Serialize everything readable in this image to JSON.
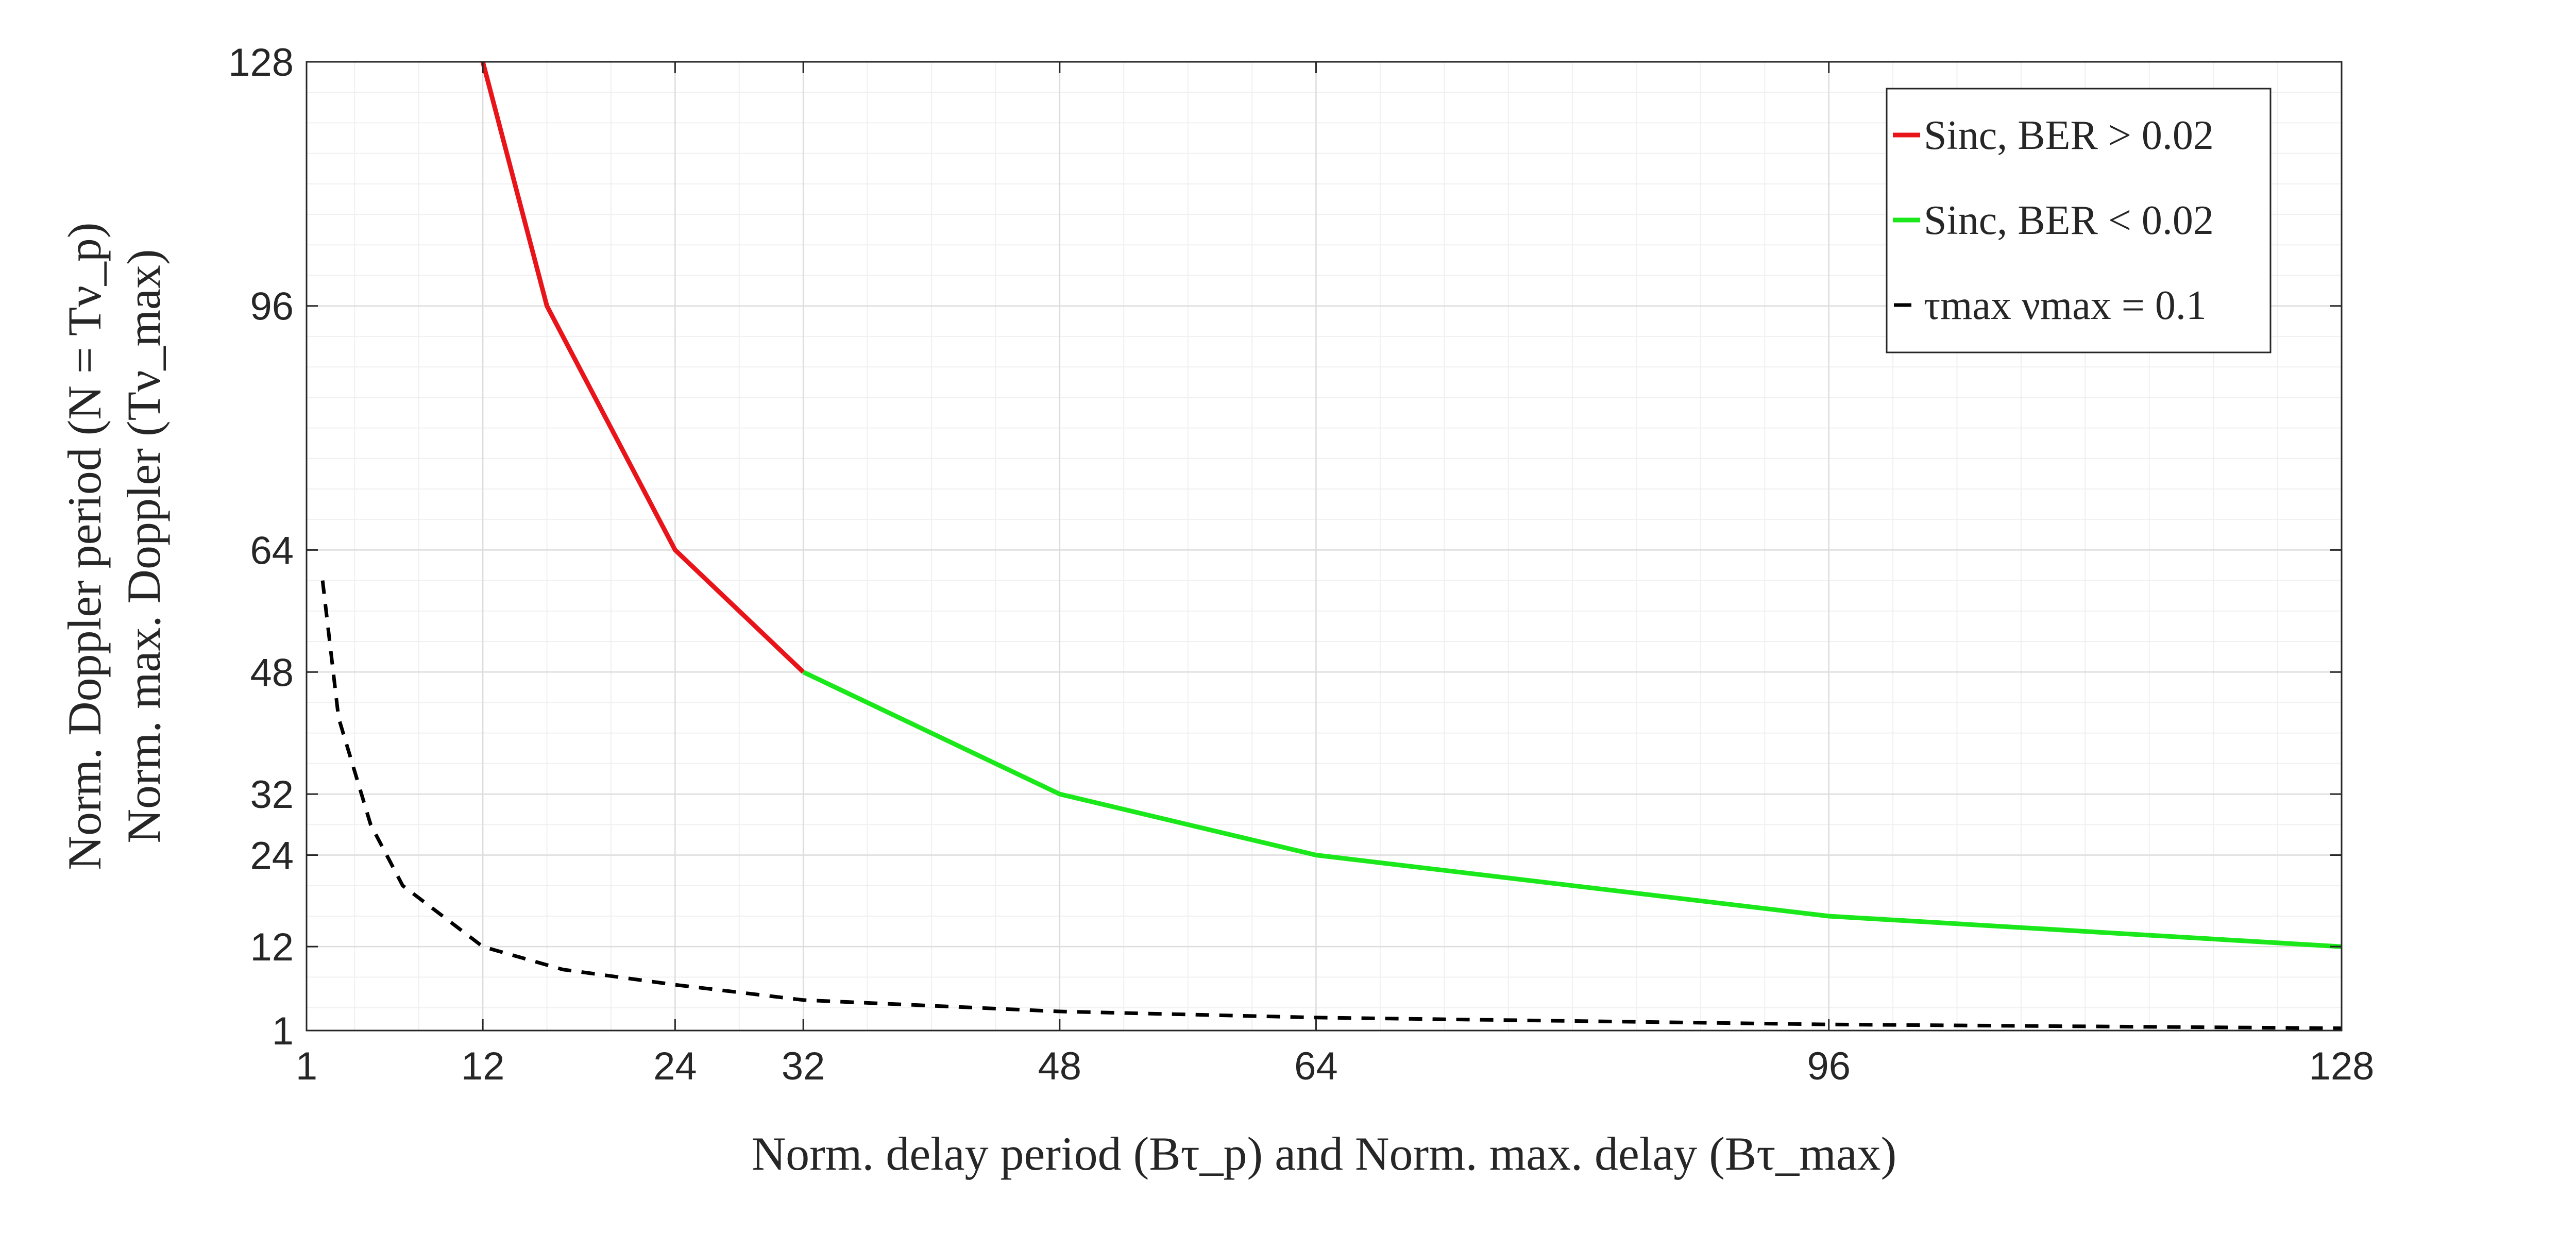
{
  "chart_data": {
    "type": "line",
    "xlabel": "Norm. delay period (Bτ_p) and Norm. max. delay (Bτ_max)",
    "ylabel_lines": [
      "Norm. Doppler period (N = Tν_p)",
      "Norm. max. Doppler (Tν_max)"
    ],
    "xlim": [
      1,
      128
    ],
    "ylim": [
      1,
      128
    ],
    "xticks": [
      1,
      12,
      24,
      32,
      48,
      64,
      96,
      128
    ],
    "yticks": [
      1,
      12,
      24,
      32,
      48,
      64,
      96,
      128
    ],
    "grid": true,
    "minor_grid": true,
    "legend_position": "top-right",
    "series": [
      {
        "name": "Sinc, BER > 0.02",
        "legend_label": "Sinc, BER > 0.02",
        "color": "#e8141a",
        "style": "solid",
        "x": [
          12,
          16,
          24,
          32
        ],
        "y": [
          128,
          96,
          64,
          48
        ]
      },
      {
        "name": "Sinc, BER < 0.02",
        "legend_label": "Sinc, BER < 0.02",
        "color": "#1ae81a",
        "style": "solid",
        "x": [
          32,
          48,
          64,
          96,
          128
        ],
        "y": [
          48,
          32,
          24,
          16,
          12
        ]
      },
      {
        "name": "τ_max ν_max = 0.1",
        "legend_label": "τmax νmax = 0.1",
        "color": "#000000",
        "style": "dashed",
        "x": [
          2,
          3,
          5,
          7,
          12,
          17,
          24,
          32,
          48,
          64,
          96,
          128
        ],
        "y": [
          60,
          42,
          28,
          20,
          12,
          9,
          7,
          5,
          3.5,
          2.7,
          1.8,
          1.3
        ]
      }
    ]
  }
}
